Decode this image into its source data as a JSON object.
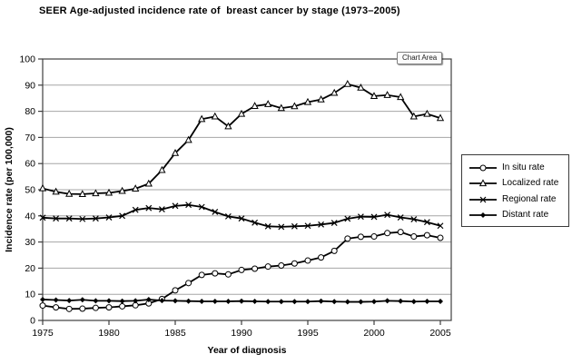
{
  "chart_area_tooltip": {
    "label": "Chart Area"
  },
  "chart_data": {
    "type": "line",
    "title": "SEER Age-adjusted incidence rate of  breast cancer by stage (1973–2005)",
    "xlabel": "Year of diagnosis",
    "ylabel": "Incidence rate (per 100,000)",
    "xlim": [
      1975,
      2005
    ],
    "ylim": [
      0,
      100
    ],
    "x_ticks": [
      1975,
      1980,
      1985,
      1990,
      1995,
      2000,
      2005
    ],
    "y_ticks": [
      0,
      10,
      20,
      30,
      40,
      50,
      60,
      70,
      80,
      90,
      100
    ],
    "grid": "horizontal",
    "legend_position": "right-outside",
    "line_color": "#000000",
    "grid_color": "#a6a6a6",
    "axis_color": "#3f3f3f",
    "x": [
      1975,
      1976,
      1977,
      1978,
      1979,
      1980,
      1981,
      1982,
      1983,
      1984,
      1985,
      1986,
      1987,
      1988,
      1989,
      1990,
      1991,
      1992,
      1993,
      1994,
      1995,
      1996,
      1997,
      1998,
      1999,
      2000,
      2001,
      2002,
      2003,
      2004,
      2005
    ],
    "series": [
      {
        "name": "In situ rate",
        "marker": "circle-open",
        "values": [
          5.7,
          5.0,
          4.4,
          4.5,
          4.8,
          5.0,
          5.4,
          5.8,
          6.5,
          8.2,
          11.5,
          14.3,
          17.4,
          18.0,
          17.6,
          19.3,
          19.8,
          20.6,
          21.0,
          21.8,
          22.9,
          24.1,
          26.6,
          31.3,
          32.0,
          32.1,
          33.4,
          33.8,
          32.1,
          32.6,
          31.6
        ]
      },
      {
        "name": "Localized rate",
        "marker": "triangle-open",
        "values": [
          50.5,
          49.2,
          48.4,
          48.3,
          48.6,
          48.8,
          49.5,
          50.4,
          52.3,
          57.5,
          64.0,
          69.0,
          77.0,
          78.0,
          74.2,
          79.0,
          82.0,
          82.7,
          81.2,
          81.9,
          83.5,
          84.5,
          87.0,
          90.4,
          89.0,
          85.8,
          86.2,
          85.4,
          78.0,
          79.0,
          77.4
        ]
      },
      {
        "name": "Regional rate",
        "marker": "x",
        "values": [
          39.3,
          39.0,
          39.0,
          38.8,
          39.0,
          39.4,
          40.0,
          42.3,
          43.0,
          42.5,
          43.8,
          44.2,
          43.4,
          41.5,
          39.8,
          39.0,
          37.4,
          36.0,
          35.8,
          36.0,
          36.2,
          36.7,
          37.3,
          38.9,
          39.7,
          39.6,
          40.4,
          39.4,
          38.7,
          37.6,
          36.2
        ]
      },
      {
        "name": "Distant rate",
        "marker": "diamond-filled",
        "values": [
          8.0,
          7.8,
          7.6,
          7.9,
          7.5,
          7.5,
          7.4,
          7.5,
          8.0,
          7.6,
          7.5,
          7.4,
          7.3,
          7.3,
          7.3,
          7.4,
          7.3,
          7.2,
          7.2,
          7.2,
          7.2,
          7.4,
          7.2,
          7.1,
          7.1,
          7.2,
          7.5,
          7.4,
          7.2,
          7.3,
          7.3
        ]
      }
    ]
  }
}
